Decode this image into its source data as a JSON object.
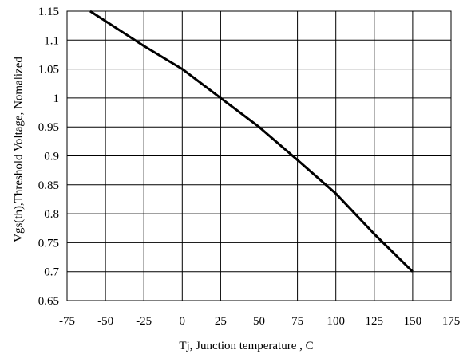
{
  "chart_data": {
    "type": "line",
    "title": "",
    "xlabel": "Tj, Junction temperature , C",
    "ylabel": "Vgs(th),Threshold Voltage, Nomalized",
    "xlim": [
      -75,
      175
    ],
    "ylim": [
      0.65,
      1.15
    ],
    "x_ticks": [
      -75,
      -50,
      -25,
      0,
      25,
      50,
      75,
      100,
      125,
      150,
      175
    ],
    "y_ticks": [
      0.65,
      0.7,
      0.75,
      0.8,
      0.85,
      0.9,
      0.95,
      1,
      1.05,
      1.1,
      1.15
    ],
    "x_tick_labels": [
      "-75",
      "-50",
      "-25",
      "0",
      "25",
      "50",
      "75",
      "100",
      "125",
      "150",
      "175"
    ],
    "y_tick_labels": [
      "0.65",
      "0.7",
      "0.75",
      "0.8",
      "0.85",
      "0.9",
      "0.95",
      "1",
      "1.05",
      "1.1",
      "1.15"
    ],
    "grid": true,
    "series": [
      {
        "x": [
          -60,
          -25,
          0,
          25,
          50,
          75,
          100,
          125,
          150
        ],
        "y": [
          1.15,
          1.09,
          1.05,
          1.0,
          0.95,
          0.893,
          0.835,
          0.765,
          0.7
        ]
      }
    ],
    "colors": {
      "line": "#000000",
      "grid": "#000000",
      "frame": "#000000"
    }
  }
}
